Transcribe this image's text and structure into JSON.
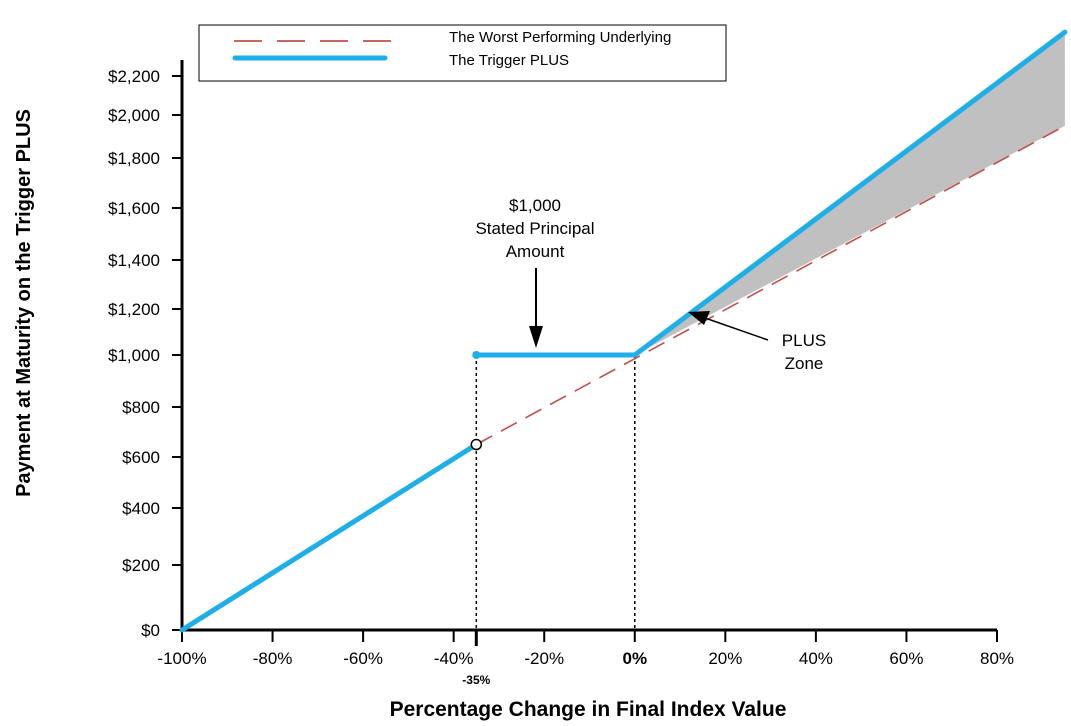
{
  "chart_data": {
    "type": "line",
    "title": "",
    "xlabel": "Percentage Change in Final Index Value",
    "ylabel": "Payment at Maturity on the Trigger PLUS",
    "xlim": [
      -100,
      95
    ],
    "ylim": [
      0,
      2400
    ],
    "x_ticks": [
      "-100%",
      "-80%",
      "-60%",
      "-40%",
      "-20%",
      "0%",
      "20%",
      "40%",
      "60%",
      "80%"
    ],
    "x_tick_values": [
      -100,
      -80,
      -60,
      -40,
      -20,
      0,
      20,
      40,
      60,
      80
    ],
    "extra_x_tick": {
      "label": "-35%",
      "value": -35
    },
    "y_ticks": [
      "$0",
      "$200",
      "$400",
      "$600",
      "$800",
      "$1,000",
      "$1,200",
      "$1,400",
      "$1,600",
      "$1,800",
      "$2,000",
      "$2,200"
    ],
    "y_tick_values": [
      0,
      200,
      400,
      600,
      800,
      1000,
      1200,
      1400,
      1600,
      1800,
      2000,
      2200
    ],
    "series": [
      {
        "name": "The Worst Performing Underlying",
        "style": "dashed",
        "color": "#c0504d",
        "x": [
          -35,
          95
        ],
        "y": [
          650,
          1950
        ]
      },
      {
        "name": "The Trigger PLUS",
        "style": "solid",
        "color": "#1eaee8",
        "segments": [
          {
            "x": [
              -100,
              -35
            ],
            "y": [
              0,
              650
            ]
          },
          {
            "x": [
              -35,
              0
            ],
            "y": [
              1000,
              1000
            ]
          },
          {
            "x": [
              0,
              95
            ],
            "y": [
              1000,
              2425
            ]
          }
        ]
      }
    ],
    "shaded_region": {
      "name": "PLUS Zone",
      "color": "#c0c0c0",
      "x": [
        0,
        95
      ]
    },
    "annotations": [
      {
        "text_lines": [
          "$1,000",
          "Stated Principal",
          "Amount"
        ],
        "points_to": {
          "x": -22,
          "y": 1000
        }
      },
      {
        "text_lines": [
          "PLUS",
          "Zone"
        ],
        "points_to": {
          "x": 13,
          "y": 1180
        }
      }
    ],
    "legend": {
      "placement": "top-center",
      "entries": [
        "The Worst Performing Underlying",
        "The Trigger PLUS"
      ]
    },
    "grid": false
  }
}
